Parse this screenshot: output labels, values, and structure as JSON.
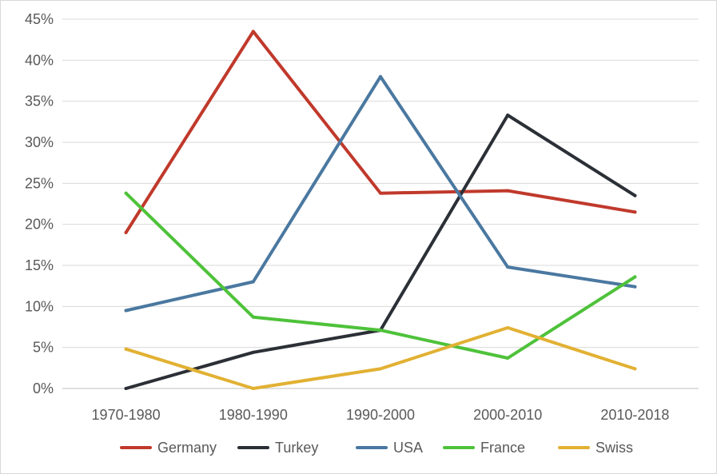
{
  "chart_data": {
    "type": "line",
    "categories": [
      "1970-1980",
      "1980-1990",
      "1990-2000",
      "2000-2010",
      "2010-2018"
    ],
    "series": [
      {
        "name": "Germany",
        "color": "#c0392b",
        "values": [
          19.0,
          43.5,
          23.8,
          24.1,
          21.5
        ]
      },
      {
        "name": "Turkey",
        "color": "#2b2f36",
        "values": [
          0.0,
          4.4,
          7.1,
          33.3,
          23.5
        ]
      },
      {
        "name": "USA",
        "color": "#4a78a0",
        "values": [
          9.5,
          13.0,
          38.0,
          14.8,
          12.4
        ]
      },
      {
        "name": "France",
        "color": "#4ec23a",
        "values": [
          23.8,
          8.7,
          7.1,
          3.7,
          13.6
        ]
      },
      {
        "name": "Swiss",
        "color": "#e2b133",
        "values": [
          4.8,
          0.0,
          2.4,
          7.4,
          2.4
        ]
      }
    ],
    "yticks": [
      "0%",
      "5%",
      "10%",
      "15%",
      "20%",
      "25%",
      "30%",
      "35%",
      "40%",
      "45%"
    ],
    "ylim": [
      0,
      45
    ],
    "title": "",
    "xlabel": "",
    "ylabel": "",
    "grid": true,
    "legend": "bottom"
  }
}
